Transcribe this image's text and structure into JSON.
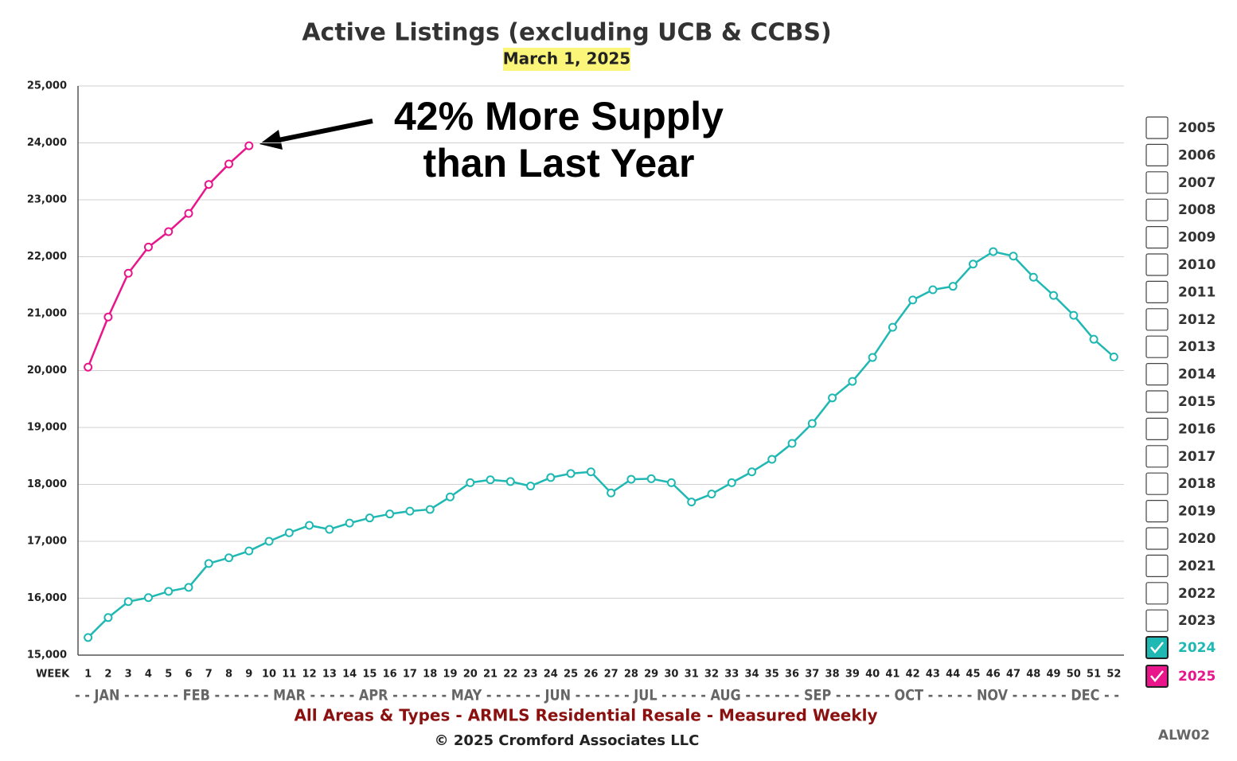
{
  "chart_data": {
    "type": "line",
    "title": "Active Listings (excluding UCB & CCBS)",
    "subtitle": "March 1, 2025",
    "annotation": [
      "42% More Supply",
      "than Last Year"
    ],
    "x_label": "WEEK",
    "month_axis": "- - JAN - - - - - - FEB - - - - - - MAR - - - - - APR - - - - - - MAY - - - - - - JUN - - - - - - JUL - - - - - AUG - - - - - - SEP - - - - - - OCT - - - - - NOV - - - - - - DEC - -",
    "footer": "All Areas & Types - ARMLS Residential Resale - Measured Weekly",
    "copyright": "© 2025 Cromford Associates LLC",
    "code": "ALW02",
    "x": [
      1,
      2,
      3,
      4,
      5,
      6,
      7,
      8,
      9,
      10,
      11,
      12,
      13,
      14,
      15,
      16,
      17,
      18,
      19,
      20,
      21,
      22,
      23,
      24,
      25,
      26,
      27,
      28,
      29,
      30,
      31,
      32,
      33,
      34,
      35,
      36,
      37,
      38,
      39,
      40,
      41,
      42,
      43,
      44,
      45,
      46,
      47,
      48,
      49,
      50,
      51,
      52
    ],
    "xlim": [
      0.5,
      52.5
    ],
    "xticks": [
      1,
      2,
      3,
      4,
      5,
      6,
      7,
      8,
      9,
      10,
      11,
      12,
      13,
      14,
      15,
      16,
      17,
      18,
      19,
      20,
      21,
      22,
      23,
      24,
      25,
      26,
      27,
      28,
      29,
      30,
      31,
      32,
      33,
      34,
      35,
      36,
      37,
      38,
      39,
      40,
      41,
      42,
      43,
      44,
      45,
      46,
      47,
      48,
      49,
      50,
      51,
      52
    ],
    "ylim": [
      15000,
      25000
    ],
    "yticks": [
      {
        "value": 15000,
        "label": "15,000"
      },
      {
        "value": 16000,
        "label": "16,000"
      },
      {
        "value": 17000,
        "label": "17,000"
      },
      {
        "value": 18000,
        "label": "18,000"
      },
      {
        "value": 19000,
        "label": "19,000"
      },
      {
        "value": 20000,
        "label": "20,000"
      },
      {
        "value": 21000,
        "label": "21,000"
      },
      {
        "value": 22000,
        "label": "22,000"
      },
      {
        "value": 23000,
        "label": "23,000"
      },
      {
        "value": 24000,
        "label": "24,000"
      },
      {
        "value": 25000,
        "label": "25,000"
      }
    ],
    "grid": true,
    "other_years": [
      "2005",
      "2006",
      "2007",
      "2008",
      "2009",
      "2010",
      "2011",
      "2012",
      "2013",
      "2014",
      "2015",
      "2016",
      "2017",
      "2018",
      "2019",
      "2020",
      "2021",
      "2022",
      "2023"
    ],
    "series": [
      {
        "name": "2024",
        "color": "#1fb8b3",
        "values": [
          15310,
          15660,
          15940,
          16010,
          16120,
          16190,
          16610,
          16710,
          16830,
          17000,
          17150,
          17280,
          17210,
          17320,
          17410,
          17480,
          17530,
          17560,
          17780,
          18030,
          18080,
          18050,
          17970,
          18120,
          18190,
          18220,
          17850,
          18090,
          18100,
          18030,
          17690,
          17830,
          18030,
          18220,
          18440,
          18720,
          19070,
          19520,
          19810,
          20230,
          20760,
          21240,
          21420,
          21480,
          21870,
          22090,
          22010,
          21640,
          21320,
          20970,
          20550,
          20240
        ]
      },
      {
        "name": "2025",
        "color": "#e8168a",
        "values": [
          20060,
          20940,
          21710,
          22170,
          22440,
          22760,
          23270,
          23630,
          23950,
          null,
          null,
          null,
          null,
          null,
          null,
          null,
          null,
          null,
          null,
          null,
          null,
          null,
          null,
          null,
          null,
          null,
          null,
          null,
          null,
          null,
          null,
          null,
          null,
          null,
          null,
          null,
          null,
          null,
          null,
          null,
          null,
          null,
          null,
          null,
          null,
          null,
          null,
          null,
          null,
          null,
          null,
          null
        ]
      }
    ]
  }
}
